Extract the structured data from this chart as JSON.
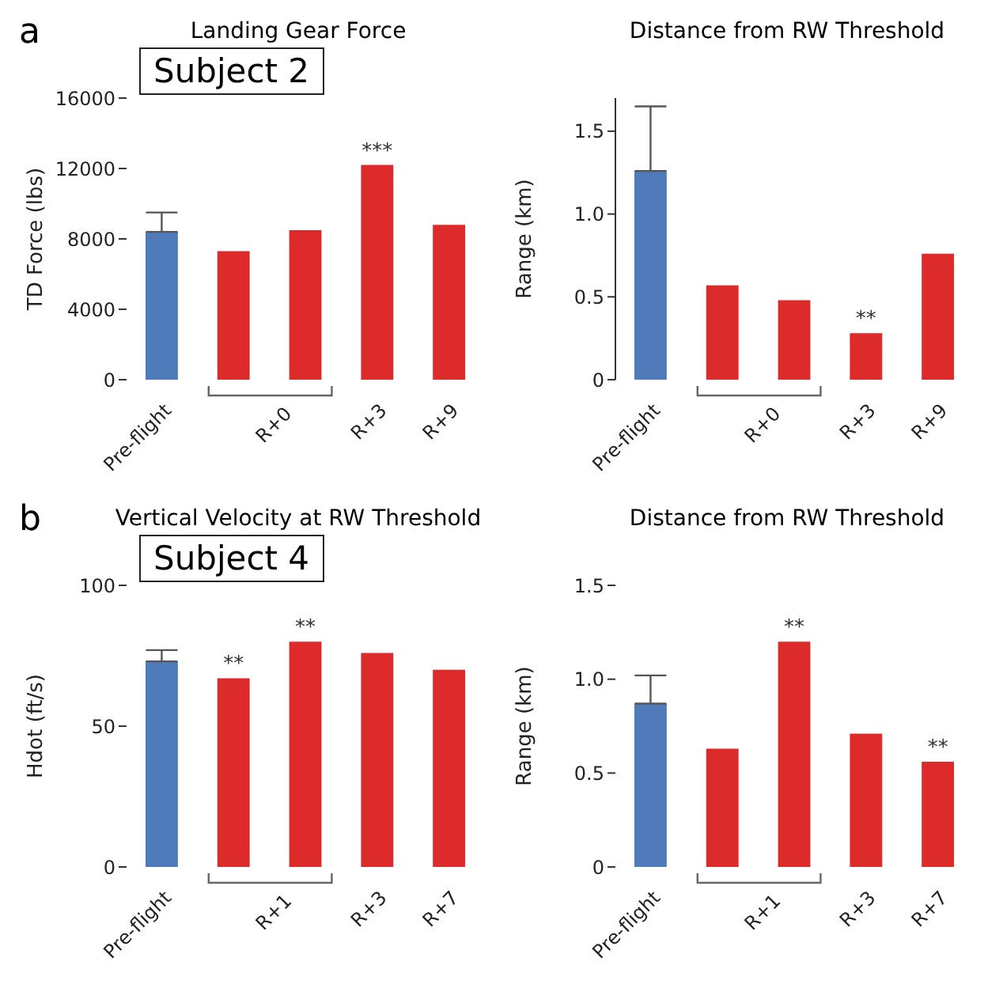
{
  "chart_data": [
    {
      "type": "bar",
      "title": "Landing Gear Force",
      "ylabel": "TD Force (lbs)",
      "categories": [
        "Pre-flight",
        null,
        null,
        "R+3",
        "R+9"
      ],
      "values": [
        8400,
        7300,
        8500,
        12200,
        8800
      ],
      "colors": [
        "#4f7bbb",
        "#dd2a2a",
        "#dd2a2a",
        "#dd2a2a",
        "#dd2a2a"
      ],
      "errors": [
        [
          8400,
          9500
        ],
        null,
        null,
        null,
        null
      ],
      "value_labels": [
        null,
        null,
        null,
        "***",
        null
      ],
      "ylim": [
        0,
        16000
      ],
      "yticks": [
        0,
        4000,
        8000,
        12000,
        16000
      ],
      "grid": false,
      "annotations": [
        "R+0",
        "a",
        "Subject 2"
      ]
    },
    {
      "type": "bar",
      "title": "Distance from RW Threshold",
      "ylabel": "Range (km)",
      "categories": [
        "Pre-flight",
        null,
        null,
        "R+3",
        "R+9"
      ],
      "values": [
        1.26,
        0.57,
        0.48,
        0.28,
        0.76
      ],
      "colors": [
        "#4f7bbb",
        "#dd2a2a",
        "#dd2a2a",
        "#dd2a2a",
        "#dd2a2a"
      ],
      "errors": [
        [
          1.26,
          1.65
        ],
        null,
        null,
        null,
        null
      ],
      "value_labels": [
        null,
        null,
        null,
        "**",
        null
      ],
      "ylim": [
        0,
        1.7
      ],
      "yticks": [
        0,
        0.5,
        {
          "value": 1,
          "label": "1.0"
        },
        1.5
      ],
      "grid": false,
      "annotations": [
        "R+0"
      ]
    },
    {
      "type": "bar",
      "title": "Vertical Velocity at RW Threshold",
      "ylabel": "Hdot (ft/s)",
      "categories": [
        "Pre-flight",
        null,
        null,
        "R+3",
        "R+7"
      ],
      "values": [
        73,
        67,
        80,
        76,
        70
      ],
      "colors": [
        "#4f7bbb",
        "#dd2a2a",
        "#dd2a2a",
        "#dd2a2a",
        "#dd2a2a"
      ],
      "errors": [
        [
          73,
          77
        ],
        null,
        null,
        null,
        null
      ],
      "value_labels": [
        null,
        "**",
        "**",
        null,
        null
      ],
      "ylim": [
        0,
        100
      ],
      "yticks": [
        0,
        50,
        100
      ],
      "grid": false,
      "annotations": [
        "R+1",
        "b",
        "Subject 4"
      ]
    },
    {
      "type": "bar",
      "title": "Distance from RW Threshold",
      "ylabel": "Range (km)",
      "categories": [
        "Pre-flight",
        null,
        null,
        "R+3",
        "R+7"
      ],
      "values": [
        0.87,
        0.63,
        1.2,
        0.71,
        0.56
      ],
      "colors": [
        "#4f7bbb",
        "#dd2a2a",
        "#dd2a2a",
        "#dd2a2a",
        "#dd2a2a"
      ],
      "errors": [
        [
          0.87,
          1.02
        ],
        null,
        null,
        null,
        null
      ],
      "value_labels": [
        null,
        null,
        "**",
        null,
        "**"
      ],
      "ylim": [
        0,
        1.5
      ],
      "yticks": [
        0,
        0.5,
        {
          "value": 1,
          "label": "1.0"
        },
        1.5
      ],
      "grid": false,
      "annotations": [
        "R+1"
      ]
    }
  ]
}
